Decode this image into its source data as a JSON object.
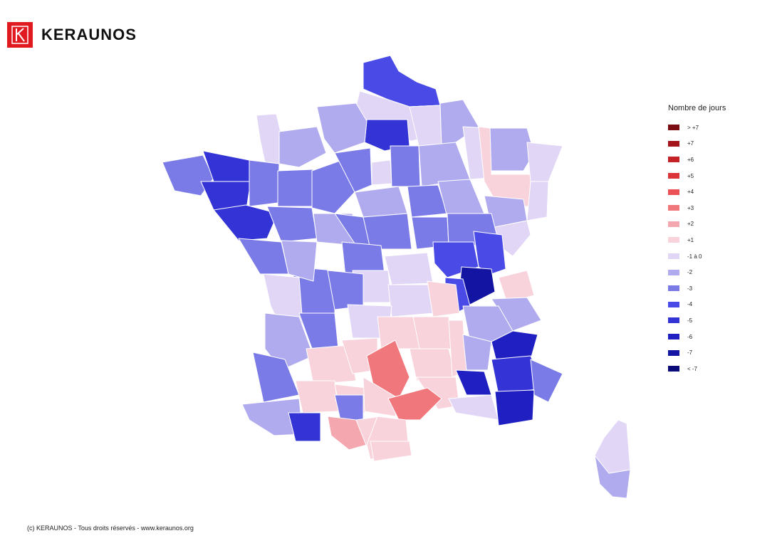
{
  "brand": {
    "name": "KERAUNOS",
    "color": "#e01a1f"
  },
  "legend": {
    "title": "Nombre de jours",
    "items": [
      {
        "label": "> +7",
        "color": "#7b0c12"
      },
      {
        "label": "+7",
        "color": "#a3141b"
      },
      {
        "label": "+6",
        "color": "#c52228"
      },
      {
        "label": "+5",
        "color": "#dc3539"
      },
      {
        "label": "+4",
        "color": "#eb5257"
      },
      {
        "label": "+3",
        "color": "#f0777c"
      },
      {
        "label": "+2",
        "color": "#f4a7ae"
      },
      {
        "label": "+1",
        "color": "#f9d3dc"
      },
      {
        "label": "-1 à 0",
        "color": "#e1d6f5"
      },
      {
        "label": "-2",
        "color": "#b0abee"
      },
      {
        "label": "-3",
        "color": "#7b7be8"
      },
      {
        "label": "-4",
        "color": "#4a4ae6"
      },
      {
        "label": "-5",
        "color": "#3434d6"
      },
      {
        "label": "-6",
        "color": "#2020c2"
      },
      {
        "label": "-7",
        "color": "#1414a2"
      },
      {
        "label": "< -7",
        "color": "#0a0a78"
      }
    ]
  },
  "copyright": "(c) KERAUNOS - Tous droits réservés - www.keraunos.org"
}
